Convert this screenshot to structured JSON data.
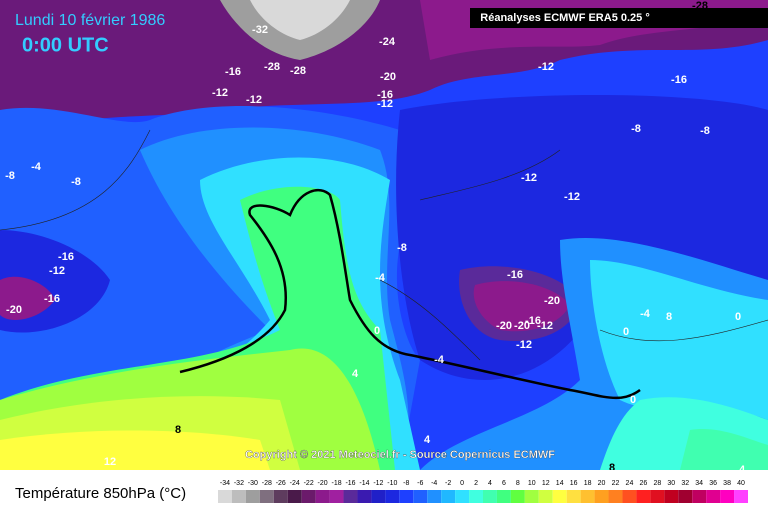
{
  "header": {
    "title": "Lundi 10 février 1986",
    "time": "0:00 UTC",
    "source": "Réanalyses ECMWF ERA5 0.25 °"
  },
  "map": {
    "contour_labels": [
      -28,
      -32,
      -24,
      -16,
      -28,
      -28,
      -12,
      -16,
      -12,
      -12,
      -20,
      -16,
      -12,
      -8,
      -8,
      -4,
      -8,
      -8,
      -12,
      -12,
      -8,
      -16,
      -12,
      -16,
      -4,
      -16,
      -20,
      -20,
      -20,
      -20,
      -16,
      -12,
      -12,
      0,
      -4,
      8,
      0,
      -4,
      4,
      8,
      4,
      12,
      8,
      4,
      0,
      0
    ]
  },
  "footer": {
    "copyright": "Copyright © 2021 Meteociel.fr - Source Copernicus ECMWF"
  },
  "legend": {
    "title": "Température 850hPa (°C)",
    "values": [
      -34,
      -32,
      -30,
      -28,
      -26,
      -24,
      -22,
      -20,
      -18,
      -16,
      -14,
      -12,
      -10,
      -8,
      -6,
      -4,
      -2,
      0,
      2,
      4,
      6,
      8,
      10,
      12,
      14,
      16,
      18,
      20,
      22,
      24,
      26,
      28,
      30,
      32,
      34,
      36,
      38,
      40
    ],
    "colors": [
      "#d9d9d9",
      "#bdbdbd",
      "#9e9e9e",
      "#7f6f7f",
      "#5e3c5e",
      "#4a1a4a",
      "#6b1a6b",
      "#8c1a8c",
      "#a020a0",
      "#5a2a9a",
      "#3a1ab0",
      "#2020c8",
      "#1c28e0",
      "#1e40ff",
      "#2060ff",
      "#2090ff",
      "#20b8ff",
      "#30e0ff",
      "#40ffe0",
      "#40ffb0",
      "#40ff80",
      "#60ff40",
      "#a0ff40",
      "#d0ff40",
      "#ffff40",
      "#ffe040",
      "#ffc030",
      "#ffa020",
      "#ff8020",
      "#ff5020",
      "#ff2020",
      "#e01020",
      "#c00020",
      "#a00030",
      "#c00060",
      "#e00090",
      "#ff00c0",
      "#ff40ff"
    ]
  }
}
